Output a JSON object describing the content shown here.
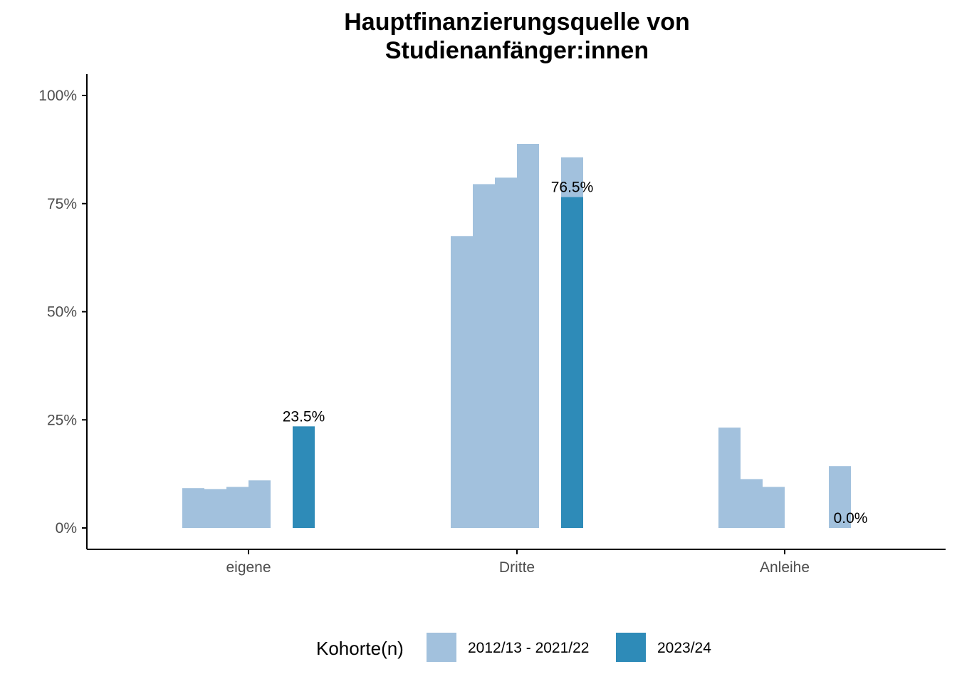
{
  "chart_data": {
    "type": "bar",
    "title": [
      "Hauptfinanzierungsquelle von",
      "Studienanfänger:innen"
    ],
    "xlabel": "",
    "ylabel": "",
    "ylim": [
      0,
      1.05
    ],
    "y_ticks": [
      {
        "value": 0,
        "label": "0%"
      },
      {
        "value": 0.25,
        "label": "25%"
      },
      {
        "value": 0.5,
        "label": "50%"
      },
      {
        "value": 0.75,
        "label": "75%"
      },
      {
        "value": 1.0,
        "label": "100%"
      }
    ],
    "categories": [
      "eigene",
      "Dritte",
      "Anleihe"
    ],
    "series": [
      {
        "name": "2012/13 - 2021/22",
        "color": "#a2c1dd",
        "cohort_values": [
          [
            0.092,
            0.09,
            0.095,
            0.11
          ],
          [
            0.675,
            0.795,
            0.81,
            0.888,
            0.857
          ],
          [
            0.232,
            0.113,
            0.095,
            null,
            0.143
          ]
        ]
      },
      {
        "name": "2023/24",
        "color": "#2e8bb8",
        "values": [
          0.235,
          0.765,
          0.0
        ],
        "labels": [
          "23.5%",
          "76.5%",
          "0.0%"
        ]
      }
    ],
    "legend": {
      "title": "Kohorte(n)",
      "position": "bottom",
      "entries": [
        "2012/13 - 2021/22",
        "2023/24"
      ]
    },
    "grid": false
  }
}
